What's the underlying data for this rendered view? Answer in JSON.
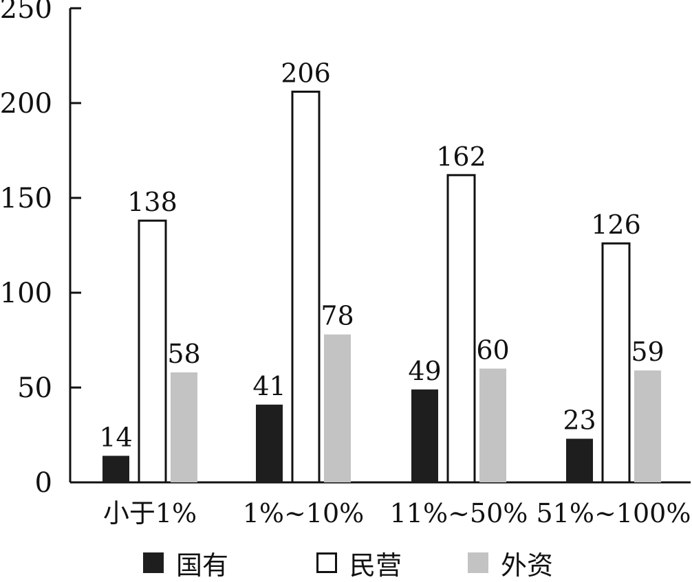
{
  "chart_data": {
    "type": "bar",
    "categories": [
      "小于1%",
      "1%~10%",
      "11%~50%",
      "51%~100%"
    ],
    "series": [
      {
        "name": "国有",
        "values": [
          14,
          41,
          49,
          23
        ],
        "color": "#1e1e1e"
      },
      {
        "name": "民营",
        "values": [
          138,
          206,
          162,
          126
        ],
        "color": "#ffffff"
      },
      {
        "name": "外资",
        "values": [
          58,
          78,
          60,
          59
        ],
        "color": "#c3c3c3"
      }
    ],
    "title": "",
    "xlabel": "",
    "ylabel": "",
    "ylim": [
      0,
      250
    ],
    "yticks": [
      "0",
      "50",
      "100",
      "150",
      "200",
      "250"
    ],
    "grid": false,
    "legend_position": "bottom"
  }
}
